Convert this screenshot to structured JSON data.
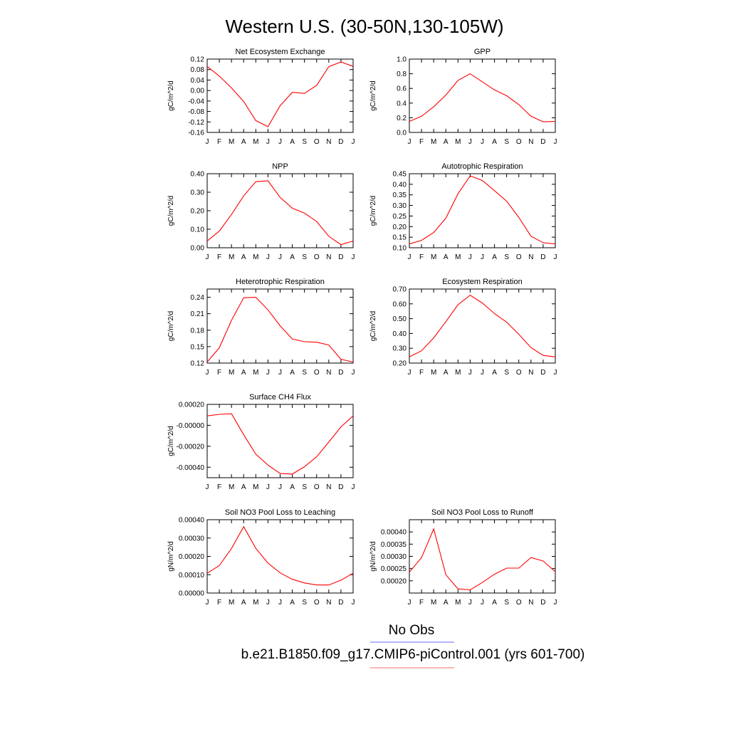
{
  "figure": {
    "title": "Western U.S. (30-50N,130-105W)",
    "legend": [
      {
        "label": "No Obs",
        "color": "#6b6bff"
      },
      {
        "label": "b.e21.B1850.f09_g17.CMIP6-piControl.001 (yrs 601-700)",
        "color": "#ff6b6b"
      }
    ],
    "line_color": "#ff0000"
  },
  "chart_data": [
    {
      "type": "line",
      "title": "Net Ecosystem Exchange",
      "ylabel": "gC/m^2/d",
      "x": [
        "J",
        "F",
        "M",
        "A",
        "M",
        "J",
        "J",
        "A",
        "S",
        "O",
        "N",
        "D",
        "J"
      ],
      "ylim": [
        -0.16,
        0.12
      ],
      "yticks": [
        -0.16,
        -0.12,
        -0.08,
        -0.04,
        0.0,
        0.04,
        0.08,
        0.12
      ],
      "ytick_labels": [
        "-0.16",
        "-0.12",
        "-0.08",
        "-0.04",
        "0.00",
        "0.04",
        "0.08",
        "0.12"
      ],
      "values": [
        0.092,
        0.055,
        0.01,
        -0.042,
        -0.115,
        -0.138,
        -0.058,
        -0.007,
        -0.011,
        0.02,
        0.091,
        0.109,
        0.092
      ]
    },
    {
      "type": "line",
      "title": "GPP",
      "ylabel": "gC/m^2/d",
      "x": [
        "J",
        "F",
        "M",
        "A",
        "M",
        "J",
        "J",
        "A",
        "S",
        "O",
        "N",
        "D",
        "J"
      ],
      "ylim": [
        0.0,
        1.0
      ],
      "yticks": [
        0.0,
        0.2,
        0.4,
        0.6,
        0.8,
        1.0
      ],
      "ytick_labels": [
        "0.0",
        "0.2",
        "0.4",
        "0.6",
        "0.8",
        "1.0"
      ],
      "values": [
        0.15,
        0.22,
        0.35,
        0.51,
        0.71,
        0.8,
        0.69,
        0.58,
        0.5,
        0.38,
        0.22,
        0.145,
        0.15
      ]
    },
    {
      "type": "line",
      "title": "NPP",
      "ylabel": "gC/m^2/d",
      "x": [
        "J",
        "F",
        "M",
        "A",
        "M",
        "J",
        "J",
        "A",
        "S",
        "O",
        "N",
        "D",
        "J"
      ],
      "ylim": [
        0.0,
        0.4
      ],
      "yticks": [
        0.0,
        0.1,
        0.2,
        0.3,
        0.4
      ],
      "ytick_labels": [
        "0.00",
        "0.10",
        "0.20",
        "0.30",
        "0.40"
      ],
      "values": [
        0.036,
        0.09,
        0.18,
        0.28,
        0.357,
        0.362,
        0.272,
        0.214,
        0.187,
        0.142,
        0.062,
        0.017,
        0.036
      ]
    },
    {
      "type": "line",
      "title": "Autotrophic Respiration",
      "ylabel": "gC/m^2/d",
      "x": [
        "J",
        "F",
        "M",
        "A",
        "M",
        "J",
        "J",
        "A",
        "S",
        "O",
        "N",
        "D",
        "J"
      ],
      "ylim": [
        0.1,
        0.45
      ],
      "yticks": [
        0.1,
        0.15,
        0.2,
        0.25,
        0.3,
        0.35,
        0.4,
        0.45
      ],
      "ytick_labels": [
        "0.10",
        "0.15",
        "0.20",
        "0.25",
        "0.30",
        "0.35",
        "0.40",
        "0.45"
      ],
      "values": [
        0.118,
        0.135,
        0.172,
        0.24,
        0.355,
        0.44,
        0.418,
        0.37,
        0.32,
        0.243,
        0.155,
        0.124,
        0.118
      ]
    },
    {
      "type": "line",
      "title": "Heterotrophic Respiration",
      "ylabel": "gC/m^2/d",
      "x": [
        "J",
        "F",
        "M",
        "A",
        "M",
        "J",
        "J",
        "A",
        "S",
        "O",
        "N",
        "D",
        "J"
      ],
      "ylim": [
        0.12,
        0.255
      ],
      "yticks": [
        0.12,
        0.15,
        0.18,
        0.21,
        0.24
      ],
      "ytick_labels": [
        "0.12",
        "0.15",
        "0.18",
        "0.21",
        "0.24"
      ],
      "values": [
        0.122,
        0.148,
        0.198,
        0.239,
        0.24,
        0.217,
        0.188,
        0.164,
        0.159,
        0.158,
        0.153,
        0.127,
        0.122
      ]
    },
    {
      "type": "line",
      "title": "Ecosystem Respiration",
      "ylabel": "gC/m^2/d",
      "x": [
        "J",
        "F",
        "M",
        "A",
        "M",
        "J",
        "J",
        "A",
        "S",
        "O",
        "N",
        "D",
        "J"
      ],
      "ylim": [
        0.2,
        0.7
      ],
      "yticks": [
        0.2,
        0.3,
        0.4,
        0.5,
        0.6,
        0.7
      ],
      "ytick_labels": [
        "0.20",
        "0.30",
        "0.40",
        "0.50",
        "0.60",
        "0.70"
      ],
      "values": [
        0.242,
        0.283,
        0.37,
        0.48,
        0.594,
        0.658,
        0.606,
        0.534,
        0.476,
        0.394,
        0.305,
        0.252,
        0.242
      ]
    },
    {
      "type": "line",
      "title": "Surface CH4 Flux",
      "ylabel": "gC/m^2/d",
      "x": [
        "J",
        "F",
        "M",
        "A",
        "M",
        "J",
        "J",
        "A",
        "S",
        "O",
        "N",
        "D",
        "J"
      ],
      "ylim": [
        -0.0005,
        0.0002
      ],
      "yticks": [
        -0.0004,
        -0.0002,
        0.0,
        0.0002
      ],
      "ytick_labels": [
        "-0.00040",
        "-0.00020",
        "-0.00000",
        "0.00020"
      ],
      "values": [
        9e-05,
        0.000105,
        0.00011,
        -9e-05,
        -0.000275,
        -0.00038,
        -0.00046,
        -0.000465,
        -0.000395,
        -0.0003,
        -0.00016,
        -1.5e-05,
        9e-05
      ]
    },
    {
      "type": "line",
      "title": "Soil NO3 Pool Loss to Leaching",
      "ylabel": "gN/m^2/d",
      "x": [
        "J",
        "F",
        "M",
        "A",
        "M",
        "J",
        "J",
        "A",
        "S",
        "O",
        "N",
        "D",
        "J"
      ],
      "ylim": [
        0.0,
        0.0004
      ],
      "yticks": [
        0.0,
        0.0001,
        0.0002,
        0.0003,
        0.0004
      ],
      "ytick_labels": [
        "0.00000",
        "0.00010",
        "0.00020",
        "0.00030",
        "0.00040"
      ],
      "values": [
        0.000108,
        0.00015,
        0.000243,
        0.000362,
        0.000244,
        0.000163,
        0.00011,
        7.5e-05,
        5.5e-05,
        4.4e-05,
        4.4e-05,
        7e-05,
        0.000108
      ]
    },
    {
      "type": "line",
      "title": "Soil NO3 Pool Loss to Runoff",
      "ylabel": "gN/m^2/d",
      "x": [
        "J",
        "F",
        "M",
        "A",
        "M",
        "J",
        "J",
        "A",
        "S",
        "O",
        "N",
        "D",
        "J"
      ],
      "ylim": [
        0.00015,
        0.00045
      ],
      "yticks": [
        0.0002,
        0.00025,
        0.0003,
        0.00035,
        0.0004
      ],
      "ytick_labels": [
        "0.00020",
        "0.00025",
        "0.00030",
        "0.00035",
        "0.00040"
      ],
      "values": [
        0.000235,
        0.000295,
        0.000412,
        0.000225,
        0.000167,
        0.000163,
        0.000193,
        0.000227,
        0.000252,
        0.000252,
        0.000295,
        0.000281,
        0.000237
      ]
    }
  ]
}
